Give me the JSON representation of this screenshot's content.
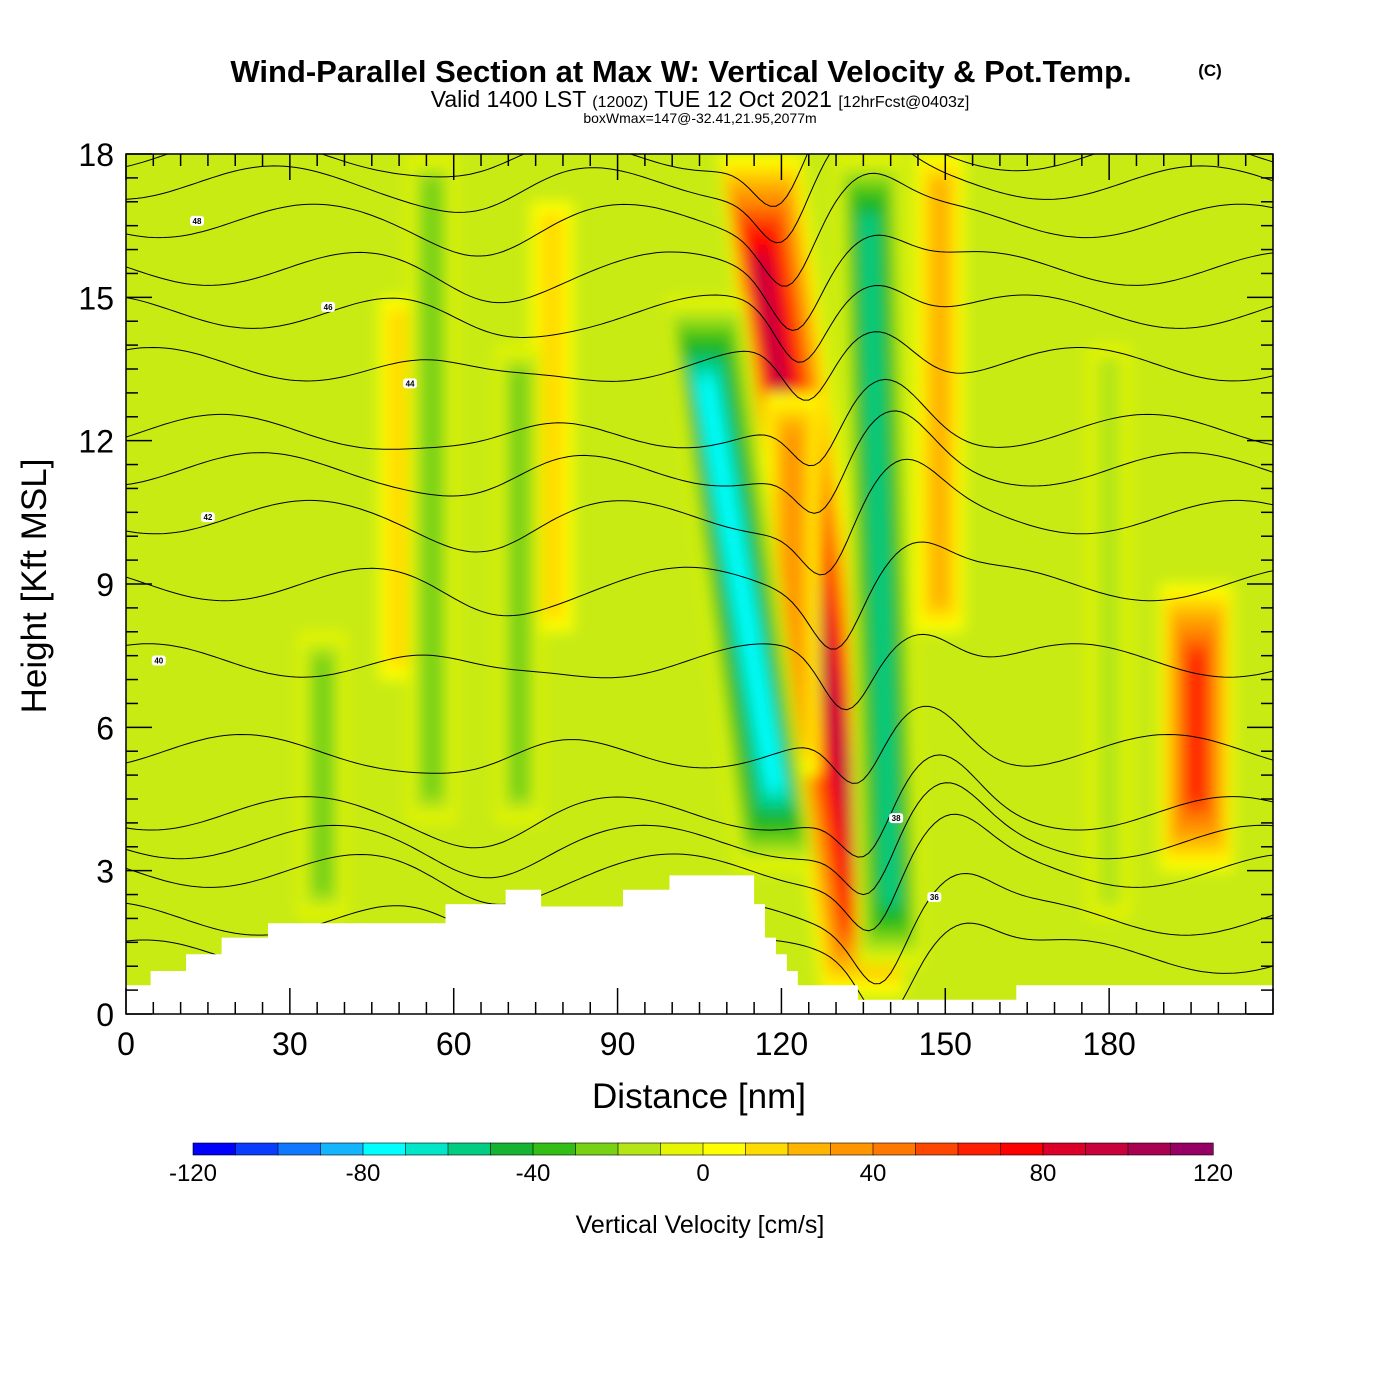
{
  "header": {
    "title": "Wind-Parallel Section at Max W: Vertical Velocity & Pot.Temp.",
    "copyright": "(C)",
    "valid_prefix": "Valid 1400 LST",
    "valid_utc": "(1200Z)",
    "valid_date": "TUE 12 Oct 2021",
    "forecast": "[12hrFcst@0403z]",
    "box_info": "boxWmax=147@-32.41,21.95,2077m"
  },
  "chart_data": {
    "type": "heatmap",
    "title": "Wind-Parallel Section at Max W: Vertical Velocity & Pot.Temp.",
    "xlabel": "Distance [nm]",
    "ylabel": "Height [Kft MSL]",
    "xlim": [
      0,
      210
    ],
    "ylim": [
      0,
      18
    ],
    "xticks": [
      0,
      30,
      60,
      90,
      120,
      150,
      180
    ],
    "yticks": [
      0,
      3,
      6,
      9,
      12,
      15,
      18
    ],
    "colorbar": {
      "title": "Vertical Velocity [cm/s]",
      "min": -120,
      "max": 120,
      "step": 10,
      "tick_labels": [
        "-120",
        "-80",
        "-40",
        "0",
        "40",
        "80",
        "120"
      ],
      "colors": [
        "#0000ff",
        "#0a3cff",
        "#0f78ff",
        "#14b4ff",
        "#00ffff",
        "#00e6c8",
        "#00cc82",
        "#14b432",
        "#32be14",
        "#78d214",
        "#b4e614",
        "#e6f500",
        "#ffff00",
        "#ffdc00",
        "#ffb400",
        "#ff9600",
        "#ff7800",
        "#ff4600",
        "#ff1e00",
        "#ff0000",
        "#dc0028",
        "#c8003c",
        "#aa0050",
        "#960064"
      ]
    },
    "vertical_velocity_features": [
      {
        "kind": "updraft",
        "x_bottom": 135,
        "x_top": 116,
        "y_bottom": 0.4,
        "y_top": 18,
        "peak": 100
      },
      {
        "kind": "updraft_broad",
        "x_bottom": 122,
        "x_top": 122,
        "y_bottom": 5,
        "y_top": 13,
        "peak": 40
      },
      {
        "kind": "downdraft",
        "x_bottom": 119,
        "x_top": 106,
        "y_bottom": 3,
        "y_top": 15,
        "peak": -80
      },
      {
        "kind": "downdraft",
        "x_bottom": 140,
        "x_top": 136,
        "y_bottom": 1,
        "y_top": 18,
        "peak": -60
      },
      {
        "kind": "updraft",
        "x_bottom": 149,
        "x_top": 149,
        "y_bottom": 8,
        "y_top": 18,
        "peak": 30
      },
      {
        "kind": "updraft",
        "x_bottom": 50,
        "x_top": 50,
        "y_bottom": 7,
        "y_top": 15,
        "peak": 15
      },
      {
        "kind": "updraft",
        "x_bottom": 78,
        "x_top": 78,
        "y_bottom": 8,
        "y_top": 17,
        "peak": 20
      },
      {
        "kind": "downdraft",
        "x_bottom": 72,
        "x_top": 72,
        "y_bottom": 4,
        "y_top": 14,
        "peak": -25
      },
      {
        "kind": "downdraft",
        "x_bottom": 56,
        "x_top": 56,
        "y_bottom": 4,
        "y_top": 18,
        "peak": -30
      },
      {
        "kind": "downdraft",
        "x_bottom": 36,
        "x_top": 36,
        "y_bottom": 2,
        "y_top": 8,
        "peak": -30
      },
      {
        "kind": "downdraft",
        "x_bottom": 180,
        "x_top": 180,
        "y_bottom": 2,
        "y_top": 14,
        "peak": -20
      },
      {
        "kind": "updraft",
        "x_bottom": 196,
        "x_top": 196,
        "y_bottom": 3,
        "y_top": 9,
        "peak": 70
      }
    ],
    "potential_temperature_contours": [
      {
        "value": 34,
        "base_y": 1.2,
        "label": ""
      },
      {
        "value": 35,
        "base_y": 2.0,
        "label": ""
      },
      {
        "value": 36,
        "base_y": 3.0,
        "label": "36",
        "label_x": 148,
        "label_y": 2.45
      },
      {
        "value": 37,
        "base_y": 3.6,
        "label": ""
      },
      {
        "value": 38,
        "base_y": 4.2,
        "label": "38",
        "label_x": 141,
        "label_y": 4.1
      },
      {
        "value": 39,
        "base_y": 5.5,
        "label": ""
      },
      {
        "value": 40,
        "base_y": 7.4,
        "label": "40",
        "label_x": 6,
        "label_y": 7.4
      },
      {
        "value": 41,
        "base_y": 9.0,
        "label": ""
      },
      {
        "value": 42,
        "base_y": 10.4,
        "label": "42",
        "label_x": 15,
        "label_y": 10.4
      },
      {
        "value": 43,
        "base_y": 11.4,
        "label": ""
      },
      {
        "value": 44,
        "base_y": 12.2,
        "label": "44",
        "label_x": 52,
        "label_y": 13.2
      },
      {
        "value": 45,
        "base_y": 13.6,
        "label": ""
      },
      {
        "value": 46,
        "base_y": 14.7,
        "label": "46",
        "label_x": 37,
        "label_y": 14.8
      },
      {
        "value": 47,
        "base_y": 15.6,
        "label": ""
      },
      {
        "value": 48,
        "base_y": 16.6,
        "label": "48",
        "label_x": 13,
        "label_y": 16.6
      },
      {
        "value": 49,
        "base_y": 17.4,
        "label": ""
      },
      {
        "value": 50,
        "base_y": 18.0,
        "label": ""
      }
    ],
    "terrain": [
      [
        0,
        0.6
      ],
      [
        4.5,
        0.9
      ],
      [
        11,
        1.25
      ],
      [
        17.5,
        1.6
      ],
      [
        26,
        1.9
      ],
      [
        58.5,
        2.3
      ],
      [
        69.5,
        2.6
      ],
      [
        76,
        2.25
      ],
      [
        91,
        2.6
      ],
      [
        99.5,
        2.9
      ],
      [
        115,
        2.3
      ],
      [
        117,
        1.6
      ],
      [
        119,
        1.25
      ],
      [
        121,
        0.9
      ],
      [
        123,
        0.6
      ],
      [
        134,
        0.3
      ],
      [
        150,
        0.3
      ],
      [
        163,
        0.6
      ],
      [
        210,
        0.6
      ]
    ]
  }
}
